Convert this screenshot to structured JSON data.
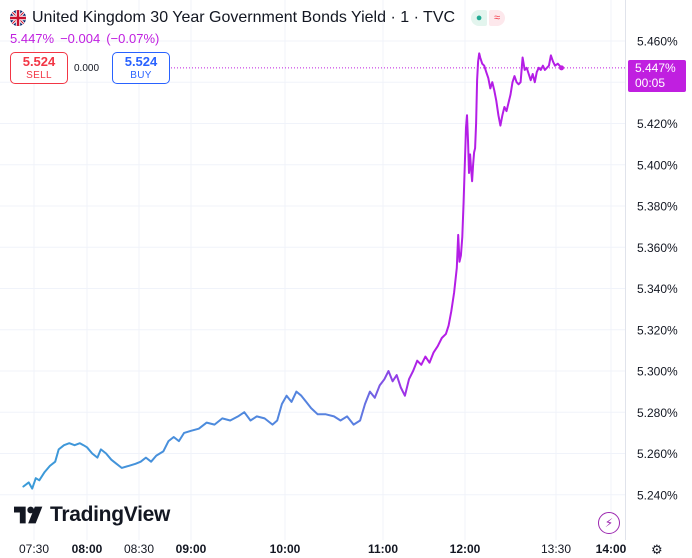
{
  "header": {
    "flag_icon": "uk-flag-icon",
    "title": "United Kingdom 30 Year Government Bonds Yield · 1 · TVC",
    "status_dot_icon": "●",
    "status_wave_icon": "≈"
  },
  "quote": {
    "last": "5.447%",
    "change": "−0.004",
    "change_pct": "(−0.07%)"
  },
  "trade": {
    "sell_price": "5.524",
    "sell_label": "SELL",
    "spread": "0.000",
    "buy_price": "5.524",
    "buy_label": "BUY"
  },
  "price_tag": {
    "value": "5.447%",
    "countdown": "00:05"
  },
  "logo": {
    "text": "TradingView"
  },
  "colors": {
    "line_start": "#3a9bd8",
    "line_end": "#b41ee6",
    "accent": "#c01fe0",
    "grid": "#f0f3fa",
    "axis_text": "#131722"
  },
  "chart_data": {
    "type": "line",
    "title": "United Kingdom 30 Year Government Bonds Yield",
    "xlabel": "",
    "ylabel": "",
    "ylim": [
      5.232,
      5.465
    ],
    "y_ticks": [
      "5.460%",
      "5.440%",
      "5.420%",
      "5.400%",
      "5.380%",
      "5.360%",
      "5.340%",
      "5.320%",
      "5.300%",
      "5.280%",
      "5.260%",
      "5.240%"
    ],
    "x_ticks": [
      {
        "label": "07:30",
        "t": "07:30",
        "bold": false
      },
      {
        "label": "08:00",
        "t": "08:00",
        "bold": true
      },
      {
        "label": "08:30",
        "t": "08:30",
        "bold": false
      },
      {
        "label": "09:00",
        "t": "09:00",
        "bold": true
      },
      {
        "label": "10:00",
        "t": "10:00",
        "bold": true
      },
      {
        "label": "11:00",
        "t": "11:00",
        "bold": true
      },
      {
        "label": "12:00",
        "t": "12:00",
        "bold": true
      },
      {
        "label": "13:30",
        "t": "13:30",
        "bold": false
      },
      {
        "label": "14:00",
        "t": "14:00",
        "bold": true
      }
    ],
    "grid": true,
    "current_value": 5.447,
    "series": [
      {
        "points": [
          [
            "07:24",
            5.244
          ],
          [
            "07:27",
            5.246
          ],
          [
            "07:29",
            5.243
          ],
          [
            "07:31",
            5.248
          ],
          [
            "07:33",
            5.247
          ],
          [
            "07:36",
            5.251
          ],
          [
            "07:39",
            5.254
          ],
          [
            "07:42",
            5.256
          ],
          [
            "07:44",
            5.262
          ],
          [
            "07:47",
            5.264
          ],
          [
            "07:50",
            5.265
          ],
          [
            "07:53",
            5.264
          ],
          [
            "07:56",
            5.265
          ],
          [
            "07:58",
            5.264
          ],
          [
            "08:00",
            5.263
          ],
          [
            "08:03",
            5.26
          ],
          [
            "08:06",
            5.258
          ],
          [
            "08:08",
            5.262
          ],
          [
            "08:11",
            5.26
          ],
          [
            "08:14",
            5.257
          ],
          [
            "08:17",
            5.255
          ],
          [
            "08:20",
            5.253
          ],
          [
            "08:24",
            5.254
          ],
          [
            "08:28",
            5.255
          ],
          [
            "08:31",
            5.256
          ],
          [
            "08:34",
            5.258
          ],
          [
            "08:37",
            5.256
          ],
          [
            "08:40",
            5.259
          ],
          [
            "08:44",
            5.261
          ],
          [
            "08:47",
            5.266
          ],
          [
            "08:50",
            5.268
          ],
          [
            "08:53",
            5.266
          ],
          [
            "08:56",
            5.27
          ],
          [
            "09:00",
            5.271
          ],
          [
            "09:05",
            5.272
          ],
          [
            "09:10",
            5.275
          ],
          [
            "09:15",
            5.274
          ],
          [
            "09:20",
            5.277
          ],
          [
            "09:25",
            5.276
          ],
          [
            "09:30",
            5.278
          ],
          [
            "09:34",
            5.28
          ],
          [
            "09:38",
            5.276
          ],
          [
            "09:42",
            5.278
          ],
          [
            "09:47",
            5.277
          ],
          [
            "09:52",
            5.274
          ],
          [
            "09:55",
            5.276
          ],
          [
            "09:58",
            5.284
          ],
          [
            "10:01",
            5.288
          ],
          [
            "10:04",
            5.285
          ],
          [
            "10:07",
            5.29
          ],
          [
            "10:10",
            5.288
          ],
          [
            "10:13",
            5.285
          ],
          [
            "10:16",
            5.282
          ],
          [
            "10:20",
            5.279
          ],
          [
            "10:25",
            5.279
          ],
          [
            "10:30",
            5.278
          ],
          [
            "10:34",
            5.276
          ],
          [
            "10:38",
            5.278
          ],
          [
            "10:42",
            5.274
          ],
          [
            "10:46",
            5.276
          ],
          [
            "10:49",
            5.284
          ],
          [
            "10:52",
            5.29
          ],
          [
            "10:55",
            5.287
          ],
          [
            "10:58",
            5.293
          ],
          [
            "11:01",
            5.296
          ],
          [
            "11:04",
            5.3
          ],
          [
            "11:07",
            5.295
          ],
          [
            "11:10",
            5.298
          ],
          [
            "11:13",
            5.292
          ],
          [
            "11:16",
            5.288
          ],
          [
            "11:19",
            5.296
          ],
          [
            "11:22",
            5.3
          ],
          [
            "11:25",
            5.305
          ],
          [
            "11:28",
            5.303
          ],
          [
            "11:31",
            5.307
          ],
          [
            "11:34",
            5.304
          ],
          [
            "11:37",
            5.309
          ],
          [
            "11:40",
            5.312
          ],
          [
            "11:43",
            5.316
          ],
          [
            "11:46",
            5.318
          ],
          [
            "11:48",
            5.322
          ],
          [
            "11:50",
            5.329
          ],
          [
            "11:52",
            5.338
          ],
          [
            "11:54",
            5.35
          ],
          [
            "11:55",
            5.366
          ],
          [
            "11:56",
            5.353
          ],
          [
            "11:57",
            5.356
          ],
          [
            "11:58",
            5.365
          ],
          [
            "11:59",
            5.382
          ],
          [
            "12:00",
            5.403
          ],
          [
            "12:01",
            5.418
          ],
          [
            "12:02",
            5.424
          ],
          [
            "12:03",
            5.412
          ],
          [
            "12:04",
            5.396
          ],
          [
            "12:05",
            5.405
          ],
          [
            "12:06",
            5.398
          ],
          [
            "12:07",
            5.392
          ],
          [
            "12:08",
            5.4
          ],
          [
            "12:09",
            5.406
          ],
          [
            "12:10",
            5.408
          ],
          [
            "12:11",
            5.42
          ],
          [
            "12:12",
            5.441
          ],
          [
            "12:13",
            5.45
          ],
          [
            "12:14",
            5.454
          ],
          [
            "12:15",
            5.452
          ],
          [
            "12:17",
            5.449
          ],
          [
            "12:19",
            5.448
          ],
          [
            "12:21",
            5.445
          ],
          [
            "12:23",
            5.442
          ],
          [
            "12:25",
            5.437
          ],
          [
            "12:27",
            5.44
          ],
          [
            "12:29",
            5.436
          ],
          [
            "12:31",
            5.431
          ],
          [
            "12:33",
            5.424
          ],
          [
            "12:35",
            5.419
          ],
          [
            "12:37",
            5.424
          ],
          [
            "12:39",
            5.428
          ],
          [
            "12:41",
            5.426
          ],
          [
            "12:43",
            5.43
          ],
          [
            "12:45",
            5.434
          ],
          [
            "12:47",
            5.44
          ],
          [
            "12:49",
            5.443
          ],
          [
            "12:51",
            5.44
          ],
          [
            "12:53",
            5.439
          ],
          [
            "12:55",
            5.44
          ],
          [
            "12:57",
            5.452
          ],
          [
            "12:59",
            5.446
          ],
          [
            "13:01",
            5.447
          ],
          [
            "13:03",
            5.444
          ],
          [
            "13:05",
            5.441
          ],
          [
            "13:07",
            5.444
          ],
          [
            "13:09",
            5.44
          ],
          [
            "13:11",
            5.445
          ],
          [
            "13:13",
            5.447
          ],
          [
            "13:15",
            5.446
          ],
          [
            "13:17",
            5.448
          ],
          [
            "13:19",
            5.446
          ],
          [
            "13:21",
            5.447
          ],
          [
            "13:23",
            5.448
          ],
          [
            "13:25",
            5.453
          ],
          [
            "13:27",
            5.45
          ],
          [
            "13:29",
            5.448
          ],
          [
            "13:31",
            5.449
          ],
          [
            "13:33",
            5.447
          ]
        ]
      }
    ]
  }
}
